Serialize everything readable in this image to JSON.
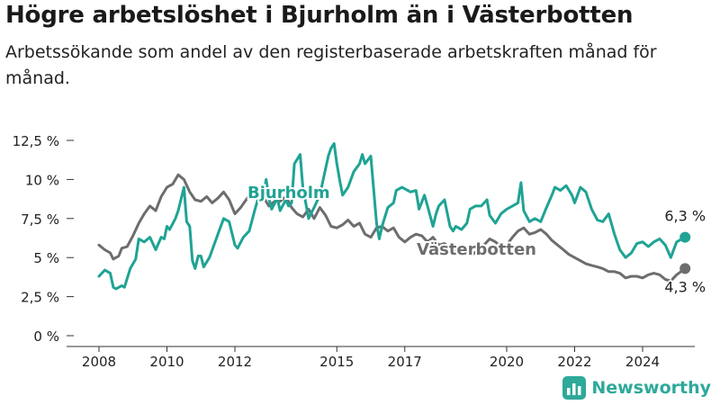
{
  "title": "Högre arbetslöshet i Bjurholm än i Västerbotten",
  "subtitle": "Arbetssökande som andel av den registerbaserade arbetskraften månad för månad.",
  "brand": {
    "name": "Newsworthy",
    "icon": "bar-chart-logo-icon"
  },
  "colors": {
    "bjurholm": "#1fa394",
    "vasterbotten": "#6d6d70",
    "axis": "#333333",
    "grid": "#dddddd"
  },
  "chart_data": {
    "type": "line",
    "title": "Högre arbetslöshet i Bjurholm än i Västerbotten",
    "subtitle": "Arbetssökande som andel av den registerbaserade arbetskraften månad för månad.",
    "xlabel": "",
    "ylabel": "",
    "xlim": [
      2008.0,
      2025.25
    ],
    "ylim": [
      0,
      12.5
    ],
    "grid": false,
    "x_ticks": [
      {
        "value": 2008,
        "label": "2008"
      },
      {
        "value": 2010,
        "label": "2010"
      },
      {
        "value": 2012,
        "label": "2012"
      },
      {
        "value": 2015,
        "label": "2015"
      },
      {
        "value": 2017,
        "label": "2017"
      },
      {
        "value": 2020,
        "label": "2020"
      },
      {
        "value": 2022,
        "label": "2022"
      },
      {
        "value": 2024,
        "label": "2024"
      }
    ],
    "y_ticks": [
      {
        "value": 0,
        "label": "0 %"
      },
      {
        "value": 2.5,
        "label": "2,5 %"
      },
      {
        "value": 5,
        "label": "5 %"
      },
      {
        "value": 7.5,
        "label": "7,5 %"
      },
      {
        "value": 10,
        "label": "10 %"
      },
      {
        "value": 12.5,
        "label": "12,5 %"
      }
    ],
    "series": [
      {
        "name": "Bjurholm",
        "end_label": "6,3 %",
        "points": [
          [
            2008.0,
            3.8
          ],
          [
            2008.17,
            4.2
          ],
          [
            2008.33,
            4.0
          ],
          [
            2008.42,
            3.1
          ],
          [
            2008.5,
            3.0
          ],
          [
            2008.67,
            3.2
          ],
          [
            2008.75,
            3.1
          ],
          [
            2008.92,
            4.3
          ],
          [
            2009.08,
            4.9
          ],
          [
            2009.17,
            6.2
          ],
          [
            2009.33,
            6.0
          ],
          [
            2009.5,
            6.3
          ],
          [
            2009.67,
            5.5
          ],
          [
            2009.83,
            6.3
          ],
          [
            2009.92,
            6.2
          ],
          [
            2010.0,
            7.0
          ],
          [
            2010.08,
            6.8
          ],
          [
            2010.25,
            7.5
          ],
          [
            2010.33,
            8.0
          ],
          [
            2010.5,
            9.5
          ],
          [
            2010.58,
            7.3
          ],
          [
            2010.67,
            7.0
          ],
          [
            2010.75,
            4.8
          ],
          [
            2010.83,
            4.3
          ],
          [
            2010.92,
            5.1
          ],
          [
            2011.0,
            5.1
          ],
          [
            2011.08,
            4.4
          ],
          [
            2011.25,
            5.0
          ],
          [
            2011.5,
            6.5
          ],
          [
            2011.67,
            7.5
          ],
          [
            2011.83,
            7.3
          ],
          [
            2012.0,
            5.8
          ],
          [
            2012.08,
            5.6
          ],
          [
            2012.25,
            6.3
          ],
          [
            2012.42,
            6.7
          ],
          [
            2012.58,
            8.0
          ],
          [
            2012.75,
            9.3
          ],
          [
            2012.83,
            8.8
          ],
          [
            2012.92,
            10.0
          ],
          [
            2013.0,
            8.8
          ],
          [
            2013.08,
            8.1
          ],
          [
            2013.25,
            8.8
          ],
          [
            2013.33,
            8.0
          ],
          [
            2013.5,
            8.7
          ],
          [
            2013.58,
            8.3
          ],
          [
            2013.67,
            8.5
          ],
          [
            2013.75,
            11.0
          ],
          [
            2013.92,
            11.6
          ],
          [
            2014.0,
            9.5
          ],
          [
            2014.17,
            7.5
          ],
          [
            2014.33,
            8.2
          ],
          [
            2014.5,
            9.0
          ],
          [
            2014.67,
            10.7
          ],
          [
            2014.75,
            11.5
          ],
          [
            2014.83,
            12.0
          ],
          [
            2014.92,
            12.3
          ],
          [
            2015.0,
            11.0
          ],
          [
            2015.08,
            10.0
          ],
          [
            2015.17,
            9.0
          ],
          [
            2015.33,
            9.5
          ],
          [
            2015.5,
            10.5
          ],
          [
            2015.67,
            11.0
          ],
          [
            2015.75,
            11.6
          ],
          [
            2015.83,
            11.0
          ],
          [
            2016.0,
            11.5
          ],
          [
            2016.17,
            7.2
          ],
          [
            2016.25,
            6.2
          ],
          [
            2016.33,
            7.0
          ],
          [
            2016.5,
            8.2
          ],
          [
            2016.67,
            8.5
          ],
          [
            2016.75,
            9.3
          ],
          [
            2016.92,
            9.5
          ],
          [
            2017.0,
            9.4
          ],
          [
            2017.17,
            9.2
          ],
          [
            2017.33,
            9.3
          ],
          [
            2017.42,
            8.1
          ],
          [
            2017.58,
            9.0
          ],
          [
            2017.67,
            8.3
          ],
          [
            2017.83,
            7.0
          ],
          [
            2017.92,
            7.8
          ],
          [
            2018.0,
            8.3
          ],
          [
            2018.17,
            8.7
          ],
          [
            2018.33,
            7.0
          ],
          [
            2018.42,
            6.7
          ],
          [
            2018.5,
            7.0
          ],
          [
            2018.67,
            6.8
          ],
          [
            2018.83,
            7.2
          ],
          [
            2018.92,
            8.1
          ],
          [
            2019.08,
            8.3
          ],
          [
            2019.25,
            8.3
          ],
          [
            2019.42,
            8.7
          ],
          [
            2019.5,
            7.7
          ],
          [
            2019.67,
            7.2
          ],
          [
            2019.83,
            7.8
          ],
          [
            2020.0,
            8.1
          ],
          [
            2020.17,
            8.3
          ],
          [
            2020.33,
            8.5
          ],
          [
            2020.42,
            9.8
          ],
          [
            2020.5,
            8.0
          ],
          [
            2020.67,
            7.3
          ],
          [
            2020.83,
            7.5
          ],
          [
            2021.0,
            7.3
          ],
          [
            2021.17,
            8.2
          ],
          [
            2021.33,
            9.0
          ],
          [
            2021.42,
            9.5
          ],
          [
            2021.58,
            9.3
          ],
          [
            2021.75,
            9.6
          ],
          [
            2021.92,
            9.0
          ],
          [
            2022.0,
            8.5
          ],
          [
            2022.17,
            9.5
          ],
          [
            2022.33,
            9.2
          ],
          [
            2022.5,
            8.1
          ],
          [
            2022.67,
            7.4
          ],
          [
            2022.83,
            7.3
          ],
          [
            2023.0,
            7.8
          ],
          [
            2023.17,
            6.5
          ],
          [
            2023.33,
            5.5
          ],
          [
            2023.5,
            5.0
          ],
          [
            2023.67,
            5.3
          ],
          [
            2023.83,
            5.9
          ],
          [
            2024.0,
            6.0
          ],
          [
            2024.17,
            5.7
          ],
          [
            2024.33,
            6.0
          ],
          [
            2024.5,
            6.2
          ],
          [
            2024.67,
            5.8
          ],
          [
            2024.83,
            5.0
          ],
          [
            2025.0,
            6.0
          ],
          [
            2025.25,
            6.3
          ]
        ]
      },
      {
        "name": "Västerbotten",
        "end_label": "4,3 %",
        "points": [
          [
            2008.0,
            5.8
          ],
          [
            2008.17,
            5.5
          ],
          [
            2008.33,
            5.3
          ],
          [
            2008.42,
            4.9
          ],
          [
            2008.58,
            5.1
          ],
          [
            2008.67,
            5.6
          ],
          [
            2008.83,
            5.7
          ],
          [
            2009.0,
            6.4
          ],
          [
            2009.17,
            7.2
          ],
          [
            2009.33,
            7.8
          ],
          [
            2009.5,
            8.3
          ],
          [
            2009.67,
            8.0
          ],
          [
            2009.83,
            8.9
          ],
          [
            2010.0,
            9.5
          ],
          [
            2010.17,
            9.7
          ],
          [
            2010.33,
            10.3
          ],
          [
            2010.5,
            10.0
          ],
          [
            2010.67,
            9.2
          ],
          [
            2010.83,
            8.7
          ],
          [
            2011.0,
            8.6
          ],
          [
            2011.17,
            8.9
          ],
          [
            2011.33,
            8.5
          ],
          [
            2011.5,
            8.8
          ],
          [
            2011.67,
            9.2
          ],
          [
            2011.83,
            8.7
          ],
          [
            2012.0,
            7.8
          ],
          [
            2012.17,
            8.2
          ],
          [
            2012.33,
            8.7
          ],
          [
            2012.5,
            9.2
          ],
          [
            2012.67,
            9.3
          ],
          [
            2012.83,
            8.9
          ],
          [
            2013.0,
            8.3
          ],
          [
            2013.17,
            8.6
          ],
          [
            2013.33,
            8.6
          ],
          [
            2013.5,
            8.9
          ],
          [
            2013.67,
            8.2
          ],
          [
            2013.83,
            7.8
          ],
          [
            2014.0,
            7.6
          ],
          [
            2014.17,
            8.1
          ],
          [
            2014.33,
            7.5
          ],
          [
            2014.5,
            8.2
          ],
          [
            2014.67,
            7.7
          ],
          [
            2014.83,
            7.0
          ],
          [
            2015.0,
            6.9
          ],
          [
            2015.17,
            7.1
          ],
          [
            2015.33,
            7.4
          ],
          [
            2015.5,
            7.0
          ],
          [
            2015.67,
            7.2
          ],
          [
            2015.83,
            6.5
          ],
          [
            2016.0,
            6.3
          ],
          [
            2016.17,
            6.9
          ],
          [
            2016.33,
            7.0
          ],
          [
            2016.5,
            6.7
          ],
          [
            2016.67,
            6.9
          ],
          [
            2016.83,
            6.3
          ],
          [
            2017.0,
            6.0
          ],
          [
            2017.17,
            6.3
          ],
          [
            2017.33,
            6.5
          ],
          [
            2017.5,
            6.4
          ],
          [
            2017.67,
            6.0
          ],
          [
            2017.83,
            6.3
          ],
          [
            2018.0,
            5.8
          ],
          [
            2018.17,
            5.9
          ],
          [
            2018.33,
            5.6
          ],
          [
            2018.5,
            5.4
          ],
          [
            2018.67,
            5.7
          ],
          [
            2018.83,
            5.5
          ],
          [
            2019.0,
            5.2
          ],
          [
            2019.17,
            5.5
          ],
          [
            2019.33,
            5.8
          ],
          [
            2019.5,
            6.2
          ],
          [
            2019.67,
            6.0
          ],
          [
            2019.83,
            5.7
          ],
          [
            2020.0,
            5.8
          ],
          [
            2020.17,
            6.3
          ],
          [
            2020.33,
            6.7
          ],
          [
            2020.5,
            6.9
          ],
          [
            2020.67,
            6.5
          ],
          [
            2020.83,
            6.6
          ],
          [
            2021.0,
            6.8
          ],
          [
            2021.17,
            6.5
          ],
          [
            2021.33,
            6.1
          ],
          [
            2021.5,
            5.8
          ],
          [
            2021.67,
            5.5
          ],
          [
            2021.83,
            5.2
          ],
          [
            2022.0,
            5.0
          ],
          [
            2022.17,
            4.8
          ],
          [
            2022.33,
            4.6
          ],
          [
            2022.5,
            4.5
          ],
          [
            2022.67,
            4.4
          ],
          [
            2022.83,
            4.3
          ],
          [
            2023.0,
            4.1
          ],
          [
            2023.17,
            4.1
          ],
          [
            2023.33,
            4.0
          ],
          [
            2023.5,
            3.7
          ],
          [
            2023.67,
            3.8
          ],
          [
            2023.83,
            3.8
          ],
          [
            2024.0,
            3.7
          ],
          [
            2024.17,
            3.9
          ],
          [
            2024.33,
            4.0
          ],
          [
            2024.5,
            3.9
          ],
          [
            2024.67,
            3.6
          ],
          [
            2024.83,
            3.5
          ],
          [
            2025.0,
            3.9
          ],
          [
            2025.25,
            4.3
          ]
        ]
      }
    ]
  }
}
